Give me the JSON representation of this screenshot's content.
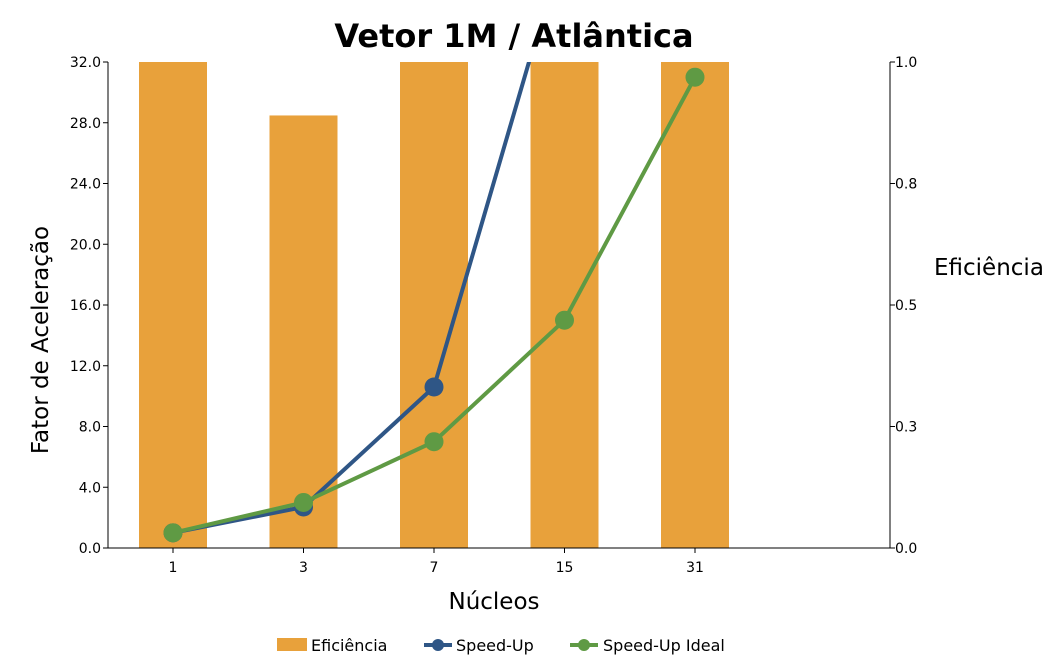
{
  "chart_data": {
    "type": "bar+line",
    "title": "Vetor 1M / Atlântica",
    "xlabel": "Núcleos",
    "ylabel_left": "Fator de Aceleração",
    "ylabel_right": "Eficiência",
    "categories": [
      "1",
      "3",
      "7",
      "15",
      "31"
    ],
    "left_ticks": [
      "0.0",
      "4.0",
      "8.0",
      "12.0",
      "16.0",
      "20.0",
      "24.0",
      "28.0",
      "32.0"
    ],
    "right_ticks": [
      "0.0",
      "0.3",
      "0.5",
      "0.8",
      "1.0"
    ],
    "ylim_left": [
      0,
      32
    ],
    "ylim_right": [
      0,
      1
    ],
    "series": [
      {
        "name": "Eficiência",
        "kind": "bar",
        "axis": "right",
        "color": "#e8a13b",
        "values": [
          1.0,
          0.89,
          1.0,
          1.0,
          1.0
        ]
      },
      {
        "name": "Speed-Up",
        "kind": "line",
        "axis": "left",
        "color": "#2f5686",
        "values": [
          1.0,
          2.7,
          10.6,
          40.0,
          null
        ]
      },
      {
        "name": "Speed-Up Ideal",
        "kind": "line",
        "axis": "left",
        "color": "#5f9a44",
        "values": [
          1.0,
          3.0,
          7.0,
          15.0,
          31.0
        ]
      }
    ],
    "legend_position": "bottom",
    "grid": false
  }
}
